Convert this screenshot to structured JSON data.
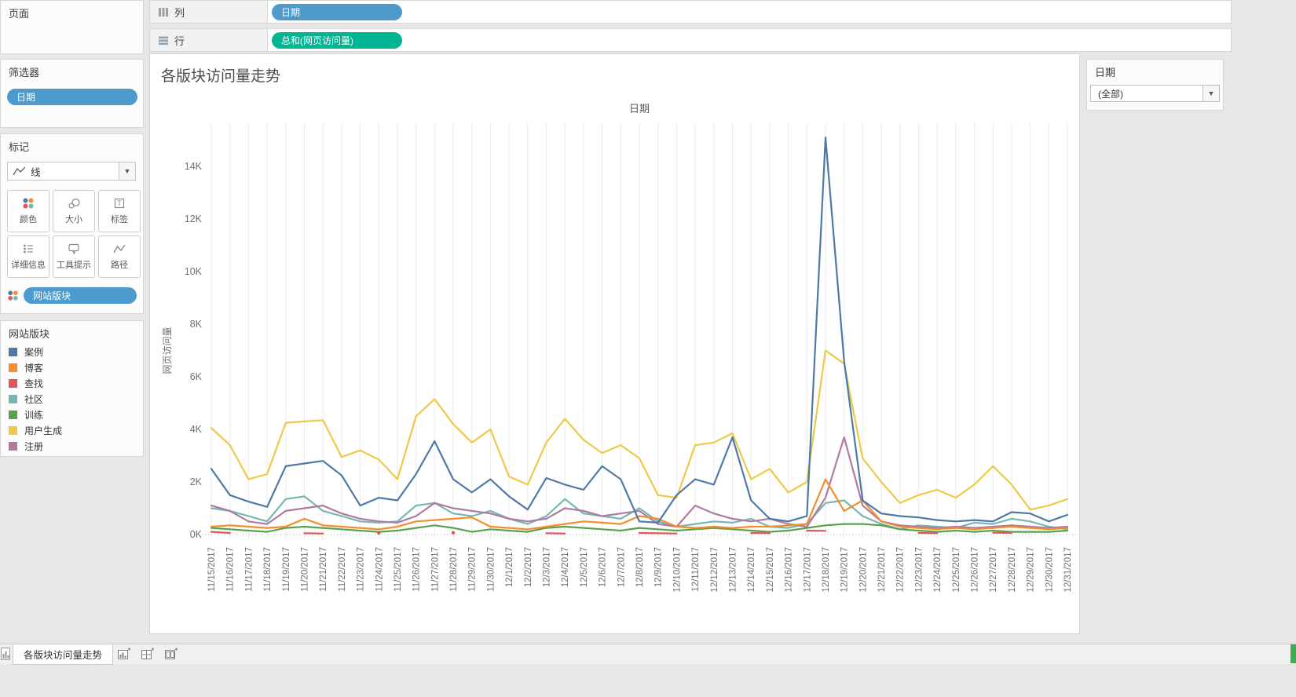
{
  "colors": {
    "dimension_pill": "#4d9bcd",
    "measure_pill": "#00b592",
    "window_bg": "#e7e7e7",
    "scroll_accent": "#3cae4f"
  },
  "pages": {
    "title": "页面"
  },
  "filters": {
    "title": "筛选器",
    "pill": "日期"
  },
  "marks": {
    "title": "标记",
    "type": "线",
    "buttons": [
      {
        "label": "颜色"
      },
      {
        "label": "大小"
      },
      {
        "label": "标签"
      },
      {
        "label": "详细信息"
      },
      {
        "label": "工具提示"
      },
      {
        "label": "路径"
      }
    ],
    "pill": "网站版块"
  },
  "legend": {
    "title": "网站版块",
    "items": [
      {
        "label": "案例",
        "color": "#4e79a7"
      },
      {
        "label": "博客",
        "color": "#f28e2b"
      },
      {
        "label": "查找",
        "color": "#e15759"
      },
      {
        "label": "社区",
        "color": "#76b7b2"
      },
      {
        "label": "训练",
        "color": "#59a14f"
      },
      {
        "label": "用户生成",
        "color": "#edc948"
      },
      {
        "label": "注册",
        "color": "#b07aa1"
      }
    ]
  },
  "shelves": {
    "columns_label": "列",
    "columns_pill": "日期",
    "rows_label": "行",
    "rows_pill": "总和(网页访问量)"
  },
  "quick_filter": {
    "title": "日期",
    "value": "(全部)"
  },
  "tabs": {
    "active": "各版块访问量走势"
  },
  "chart_data": {
    "type": "line",
    "title": "各版块访问量走势",
    "top_label": "日期",
    "ylabel": "网页访问量",
    "ylim": [
      0,
      15200
    ],
    "grid": "vertical",
    "yticks": [
      0,
      2000,
      4000,
      6000,
      8000,
      10000,
      12000,
      14000
    ],
    "ytick_labels": [
      "0K",
      "2K",
      "4K",
      "6K",
      "8K",
      "10K",
      "12K",
      "14K"
    ],
    "x": [
      "11/15/2017",
      "11/16/2017",
      "11/17/2017",
      "11/18/2017",
      "11/19/2017",
      "11/20/2017",
      "11/21/2017",
      "11/22/2017",
      "11/23/2017",
      "11/24/2017",
      "11/25/2017",
      "11/26/2017",
      "11/27/2017",
      "11/28/2017",
      "11/29/2017",
      "11/30/2017",
      "12/1/2017",
      "12/2/2017",
      "12/3/2017",
      "12/4/2017",
      "12/5/2017",
      "12/6/2017",
      "12/7/2017",
      "12/8/2017",
      "12/9/2017",
      "12/10/2017",
      "12/11/2017",
      "12/12/2017",
      "12/13/2017",
      "12/14/2017",
      "12/15/2017",
      "12/16/2017",
      "12/17/2017",
      "12/18/2017",
      "12/19/2017",
      "12/20/2017",
      "12/21/2017",
      "12/22/2017",
      "12/23/2017",
      "12/24/2017",
      "12/25/2017",
      "12/26/2017",
      "12/27/2017",
      "12/28/2017",
      "12/29/2017",
      "12/30/2017",
      "12/31/2017"
    ],
    "series": [
      {
        "name": "用户生成",
        "color": "#edc948",
        "values": [
          4050,
          3400,
          2100,
          2300,
          4250,
          4300,
          4350,
          2950,
          3200,
          2850,
          2100,
          4500,
          5150,
          4200,
          3500,
          4000,
          2200,
          1900,
          3500,
          4400,
          3600,
          3100,
          3400,
          2900,
          1500,
          1400,
          3400,
          3500,
          3850,
          2100,
          2500,
          1600,
          2000,
          7000,
          6500,
          2900,
          2000,
          1200,
          1500,
          1700,
          1400,
          1900,
          2600,
          1900,
          950,
          1100,
          1350
        ]
      },
      {
        "name": "社区",
        "color": "#76b7b2",
        "values": [
          1000,
          900,
          700,
          500,
          1350,
          1450,
          900,
          700,
          500,
          450,
          500,
          1100,
          1200,
          800,
          700,
          900,
          600,
          400,
          700,
          1350,
          800,
          700,
          600,
          1000,
          500,
          300,
          400,
          500,
          450,
          600,
          300,
          250,
          400,
          1200,
          1300,
          700,
          400,
          200,
          350,
          300,
          250,
          450,
          400,
          600,
          500,
          300,
          200
        ]
      },
      {
        "name": "注册",
        "color": "#b07aa1",
        "values": [
          1100,
          900,
          500,
          400,
          900,
          1000,
          1100,
          800,
          600,
          500,
          450,
          700,
          1200,
          1000,
          900,
          800,
          600,
          500,
          600,
          1000,
          900,
          700,
          800,
          900,
          400,
          300,
          1100,
          800,
          600,
          500,
          600,
          400,
          300,
          1400,
          3700,
          1100,
          500,
          350,
          300,
          250,
          300,
          250,
          300,
          350,
          300,
          250,
          300
        ]
      },
      {
        "name": "训练",
        "color": "#59a14f",
        "values": [
          250,
          200,
          150,
          100,
          250,
          300,
          250,
          200,
          150,
          100,
          150,
          250,
          350,
          250,
          100,
          200,
          150,
          100,
          250,
          300,
          250,
          200,
          150,
          250,
          200,
          150,
          200,
          250,
          200,
          150,
          100,
          150,
          250,
          350,
          400,
          400,
          350,
          200,
          150,
          100,
          150,
          100,
          150,
          100,
          100,
          100,
          150
        ]
      },
      {
        "name": "博客",
        "color": "#f28e2b",
        "values": [
          300,
          350,
          300,
          250,
          300,
          600,
          350,
          300,
          250,
          200,
          300,
          500,
          550,
          600,
          650,
          300,
          250,
          200,
          300,
          400,
          500,
          450,
          400,
          700,
          600,
          300,
          250,
          300,
          250,
          300,
          300,
          350,
          400,
          2100,
          900,
          1300,
          500,
          300,
          250,
          200,
          250,
          200,
          250,
          300,
          250,
          200,
          250
        ]
      },
      {
        "name": "查找",
        "color": "#e15759",
        "values": [
          100,
          60,
          null,
          null,
          null,
          50,
          40,
          null,
          null,
          60,
          null,
          null,
          null,
          70,
          null,
          null,
          null,
          null,
          50,
          40,
          null,
          null,
          null,
          60,
          50,
          40,
          null,
          null,
          null,
          60,
          50,
          null,
          150,
          140,
          null,
          null,
          null,
          null,
          60,
          50,
          null,
          null,
          70,
          60,
          null,
          null,
          null
        ]
      },
      {
        "name": "案例",
        "color": "#4e79a7",
        "values": [
          2500,
          1500,
          1250,
          1050,
          2600,
          2700,
          2800,
          2250,
          1100,
          1400,
          1300,
          2300,
          3550,
          2100,
          1600,
          2100,
          1450,
          950,
          2150,
          1900,
          1700,
          2600,
          2100,
          500,
          450,
          1500,
          2100,
          1900,
          3700,
          1300,
          600,
          500,
          700,
          15100,
          6600,
          1300,
          800,
          700,
          650,
          550,
          500,
          550,
          500,
          850,
          800,
          500,
          750
        ]
      }
    ]
  }
}
